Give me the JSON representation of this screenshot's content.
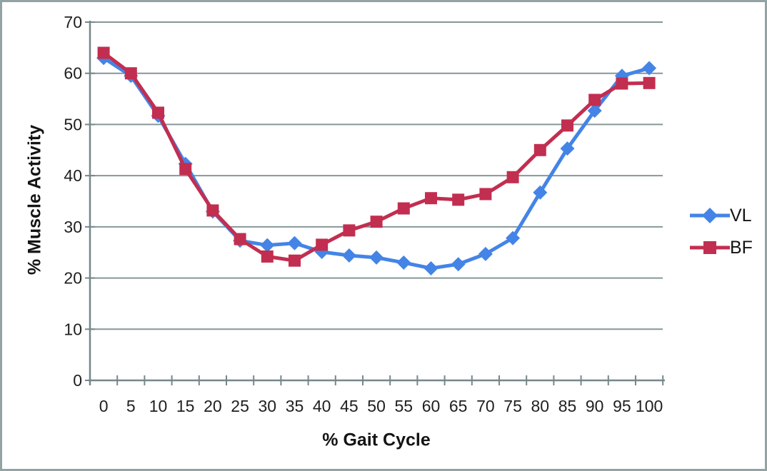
{
  "figure": {
    "border_color": "#93a3a5",
    "background": "#ffffff"
  },
  "chart_data": {
    "type": "line",
    "title": "",
    "xlabel": "% Gait Cycle",
    "ylabel": "% Muscle Activity",
    "categories": [
      0,
      5,
      10,
      15,
      20,
      25,
      30,
      35,
      40,
      45,
      50,
      55,
      60,
      65,
      70,
      75,
      80,
      85,
      90,
      95,
      100
    ],
    "y_ticks": [
      0,
      10,
      20,
      30,
      40,
      50,
      60,
      70
    ],
    "ylim": [
      0,
      70
    ],
    "grid": "horizontal",
    "legend_position": "right",
    "axis_color": "#76878a",
    "gridline_color": "#87979a",
    "tick_style": "cross",
    "series": [
      {
        "name": "VL",
        "color": "#4484e6",
        "marker": "diamond",
        "values": [
          63.0,
          59.5,
          51.7,
          42.3,
          33.0,
          27.3,
          26.4,
          26.8,
          25.1,
          24.4,
          24.0,
          23.0,
          21.9,
          22.7,
          24.7,
          27.8,
          36.7,
          45.3,
          52.7,
          59.5,
          61.0
        ]
      },
      {
        "name": "BF",
        "color": "#c22e50",
        "marker": "square",
        "values": [
          64.0,
          60.0,
          52.3,
          41.3,
          33.2,
          27.6,
          24.2,
          23.4,
          26.5,
          29.3,
          31.0,
          33.6,
          35.6,
          35.3,
          36.4,
          39.7,
          45.0,
          49.8,
          54.8,
          58.0,
          58.1
        ]
      }
    ]
  }
}
